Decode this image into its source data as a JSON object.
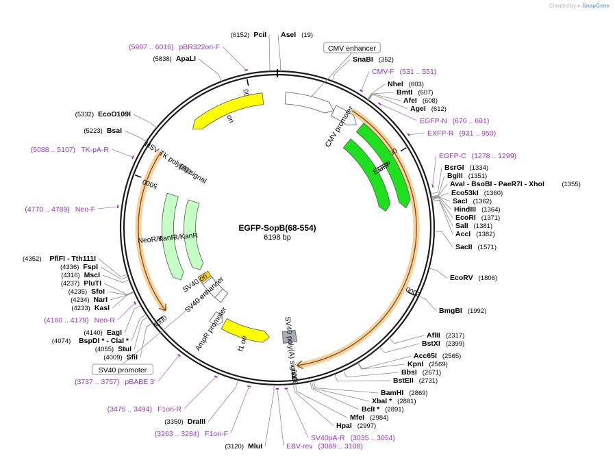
{
  "credit": {
    "prefix": "Created by",
    "brand": "SnapGene"
  },
  "plasmid": {
    "name": "EGFP-SopB(68-554)",
    "length": "6198 bp",
    "length_num": 6198
  },
  "ticks": [
    {
      "pos": 1000,
      "label": "1000"
    },
    {
      "pos": 2000,
      "label": "2000"
    },
    {
      "pos": 3000,
      "label": "3000"
    },
    {
      "pos": 4000,
      "label": "4000"
    },
    {
      "pos": 5000,
      "label": "5000"
    },
    {
      "pos": 6000,
      "label": "6000"
    }
  ],
  "features": [
    {
      "name": "CMV enhancer",
      "start": 61,
      "end": 440,
      "color": "#ffffff",
      "ring": 1,
      "dir": 1,
      "boxed": true
    },
    {
      "name": "CMV promoter",
      "start": 441,
      "end": 644,
      "color": "#ffffff",
      "ring": 1,
      "dir": 1
    },
    {
      "name": "EGFP",
      "start": 679,
      "end": 1398,
      "color": "#1fe01f",
      "ring": 1,
      "dir": 1
    },
    {
      "name": "EGFP",
      "start": 679,
      "end": 1398,
      "color": "#1fe01f",
      "ring": 2,
      "dir": 1
    },
    {
      "name": "SV40 poly(A) signal",
      "start": 2930,
      "end": 3050,
      "color": "#a9adb6",
      "ring": 2,
      "dir": 0
    },
    {
      "name": "f1 ori",
      "start": 3170,
      "end": 3600,
      "color": "#ffff00",
      "ring": 2,
      "dir": -1
    },
    {
      "name": "AmpR promoter",
      "start": 3620,
      "end": 3720,
      "color": "#ffffff",
      "ring": 2,
      "dir": -1
    },
    {
      "name": "SV40 promoter",
      "start": 3740,
      "end": 4080,
      "color": "#ffffff",
      "ring": 3,
      "dir": 1,
      "boxed": true
    },
    {
      "name": "SV40 enhancer",
      "start": 3820,
      "end": 4010,
      "color": "#ffffff",
      "ring": 3,
      "dir": 0
    },
    {
      "name": "SV40 ori",
      "start": 4030,
      "end": 4100,
      "color": "#ffd700",
      "ring": 3,
      "dir": 0
    },
    {
      "name": "NeoR/KanR",
      "start": 4160,
      "end": 4950,
      "color": "#c6ffc6",
      "ring": 3,
      "dir": -1
    },
    {
      "name": "NeoR/KanR",
      "start": 4160,
      "end": 4950,
      "color": "#c6ffc6",
      "ring": 2,
      "dir": -1
    },
    {
      "name": "HSV TK poly(A) signal",
      "start": 5190,
      "end": 5230,
      "color": "#a9adb6",
      "ring": 2,
      "dir": 0
    },
    {
      "name": "ori",
      "start": 5500,
      "end": 6088,
      "color": "#ffff00",
      "ring": 1,
      "dir": -1
    }
  ],
  "orange_arcs": [
    {
      "start": 560,
      "end": 2960,
      "dir": 1
    },
    {
      "start": 4020,
      "end": 5220,
      "dir": -1
    }
  ],
  "enzymes_right": [
    {
      "name": "AseI",
      "pos": "(19)",
      "site": 19
    },
    {
      "name": "SnaBI",
      "pos": "(352)",
      "site": 352
    },
    {
      "name": "NheI",
      "pos": "(603)",
      "site": 603
    },
    {
      "name": "BmtI",
      "pos": "(607)",
      "site": 607
    },
    {
      "name": "AfeI",
      "pos": "(608)",
      "site": 608
    },
    {
      "name": "AgeI",
      "pos": "(612)",
      "site": 612
    },
    {
      "name": "BsrGI",
      "pos": "(1334)",
      "site": 1334
    },
    {
      "name": "BglII",
      "pos": "(1351)",
      "site": 1351
    },
    {
      "name": "AvaI  -  BsoBI  -  PaeR7I  -  XhoI",
      "pos": "(1355)",
      "site": 1355
    },
    {
      "name": "Eco53kI",
      "pos": "(1360)",
      "site": 1360
    },
    {
      "name": "SacI",
      "pos": "(1362)",
      "site": 1362
    },
    {
      "name": "HindIII",
      "pos": "(1364)",
      "site": 1364
    },
    {
      "name": "EcoRI",
      "pos": "(1371)",
      "site": 1371
    },
    {
      "name": "SalI",
      "pos": "(1381)",
      "site": 1381
    },
    {
      "name": "AccI",
      "pos": "(1382)",
      "site": 1382
    },
    {
      "name": "SacII",
      "pos": "(1571)",
      "site": 1571
    },
    {
      "name": "EcoRV",
      "pos": "(1806)",
      "site": 1806
    },
    {
      "name": "BmgBI",
      "pos": "(1992)",
      "site": 1992
    },
    {
      "name": "AflII",
      "pos": "(2317)",
      "site": 2317
    },
    {
      "name": "BstXI",
      "pos": "(2399)",
      "site": 2399
    },
    {
      "name": "Acc65I",
      "pos": "(2565)",
      "site": 2565
    },
    {
      "name": "KpnI",
      "pos": "(2569)",
      "site": 2569
    },
    {
      "name": "BbsI",
      "pos": "(2671)",
      "site": 2671
    },
    {
      "name": "BstEII",
      "pos": "(2731)",
      "site": 2731
    },
    {
      "name": "BamHI",
      "pos": "(2869)",
      "site": 2869
    },
    {
      "name": "XbaI *",
      "pos": "(2881)",
      "site": 2881
    },
    {
      "name": "BclI *",
      "pos": "(2891)",
      "site": 2891
    },
    {
      "name": "MfeI",
      "pos": "(2984)",
      "site": 2984
    },
    {
      "name": "HpaI",
      "pos": "(2997)",
      "site": 2997
    }
  ],
  "enzymes_left": [
    {
      "name": "PciI",
      "pos": "(6152)",
      "site": 6152
    },
    {
      "name": "ApaLI",
      "pos": "(5838)",
      "site": 5838
    },
    {
      "name": "EcoO109I",
      "pos": "(5332)",
      "site": 5332
    },
    {
      "name": "BsaI",
      "pos": "(5223)",
      "site": 5223
    },
    {
      "name": "PflFI  -  Tth111I",
      "pos": "(4352)",
      "site": 4352
    },
    {
      "name": "FspI",
      "pos": "(4336)",
      "site": 4336
    },
    {
      "name": "MscI",
      "pos": "(4316)",
      "site": 4316
    },
    {
      "name": "PluTI",
      "pos": "(4237)",
      "site": 4237
    },
    {
      "name": "SfoI",
      "pos": "(4235)",
      "site": 4235
    },
    {
      "name": "NarI",
      "pos": "(4234)",
      "site": 4234
    },
    {
      "name": "KasI",
      "pos": "(4233)",
      "site": 4233
    },
    {
      "name": "EagI",
      "pos": "(4140)",
      "site": 4140
    },
    {
      "name": "BspDI *  -  ClaI *",
      "pos": "(4074)",
      "site": 4074
    },
    {
      "name": "StuI",
      "pos": "(4055)",
      "site": 4055
    },
    {
      "name": "SfiI",
      "pos": "(4009)",
      "site": 4009
    },
    {
      "name": "DraIII",
      "pos": "(3350)",
      "site": 3350
    },
    {
      "name": "MluI",
      "pos": "(3120)",
      "site": 3120
    }
  ],
  "primers": [
    {
      "name": "pBR322ori-F",
      "pos": "(5997 .. 6016)",
      "site": 6006
    },
    {
      "name": "CMV-F",
      "pos": "(531 .. 551)",
      "site": 541
    },
    {
      "name": "EGFP-N",
      "pos": "(670 .. 691)",
      "site": 680
    },
    {
      "name": "EXFP-R",
      "pos": "(931 .. 950)",
      "site": 940
    },
    {
      "name": "EGFP-C",
      "pos": "(1278 .. 1299)",
      "site": 1288
    },
    {
      "name": "TK-pA-R",
      "pos": "(5088 .. 5107)",
      "site": 5098
    },
    {
      "name": "Neo-F",
      "pos": "(4770 .. 4789)",
      "site": 4780
    },
    {
      "name": "Neo-R",
      "pos": "(4160 .. 4179)",
      "site": 4170
    },
    {
      "name": "pBABE 3'",
      "pos": "(3737 .. 3757)",
      "site": 3747
    },
    {
      "name": "F1ori-R",
      "pos": "(3475 .. 3494)",
      "site": 3485
    },
    {
      "name": "F1ori-F",
      "pos": "(3263 .. 3284)",
      "site": 3273
    },
    {
      "name": "EBV-rev",
      "pos": "(3089 .. 3108)",
      "site": 3099
    },
    {
      "name": "SV40pA-R",
      "pos": "(3035 .. 3054)",
      "site": 3045
    }
  ]
}
